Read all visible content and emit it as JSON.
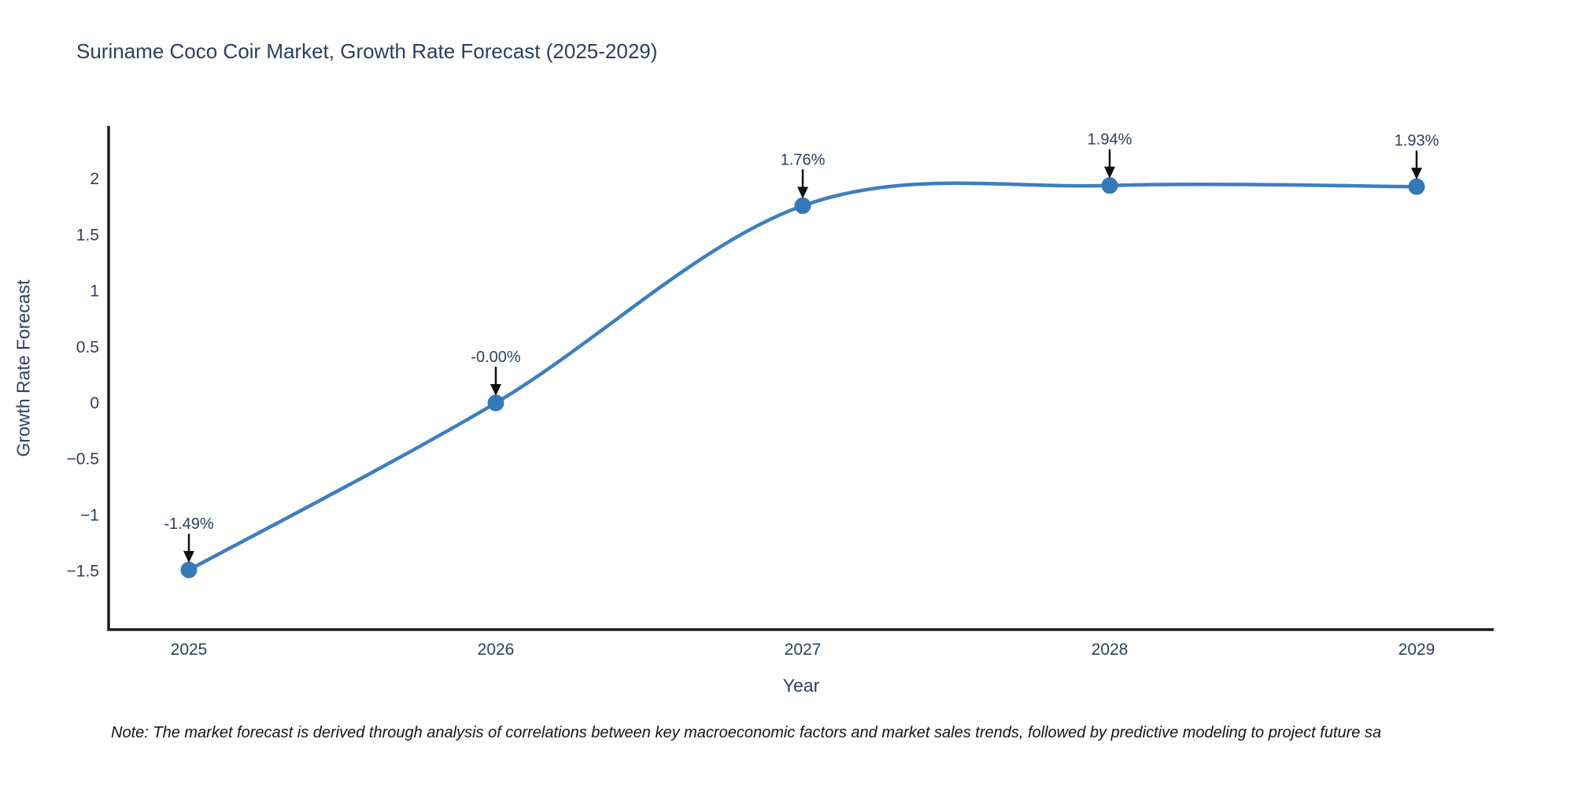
{
  "note": "Note: The market forecast is derived through analysis of correlations between key macroeconomic factors and market sales trends, followed by predictive modeling to project future sa",
  "chart_data": {
    "type": "line",
    "title": "Suriname Coco Coir Market, Growth Rate Forecast (2025-2029)",
    "xlabel": "Year",
    "ylabel": "Growth Rate Forecast",
    "x": [
      2025,
      2026,
      2027,
      2028,
      2029
    ],
    "series": [
      {
        "name": "Growth Rate Forecast",
        "values": [
          -1.49,
          -0.0,
          1.76,
          1.94,
          1.93
        ]
      }
    ],
    "point_labels": [
      "-1.49%",
      "-0.00%",
      "1.76%",
      "1.94%",
      "1.93%"
    ],
    "y_ticks": [
      {
        "value": 2,
        "label": "2"
      },
      {
        "value": 1.5,
        "label": "1.5"
      },
      {
        "value": 1,
        "label": "1"
      },
      {
        "value": 0.5,
        "label": "0.5"
      },
      {
        "value": 0,
        "label": "0"
      },
      {
        "value": -0.5,
        "label": "−0.5"
      },
      {
        "value": -1,
        "label": "−1"
      },
      {
        "value": -1.5,
        "label": "−1.5"
      }
    ],
    "ylim": [
      -2.05,
      2.5
    ],
    "line_shape": "spline",
    "grid": "off",
    "legend": "none",
    "annotation_arrows": true,
    "line_color": "#3d7ebf",
    "marker_color": "#3678b8",
    "text_color": "#2a3f5f",
    "axis_color": "#1c1c1c",
    "arrow_color": "#111111"
  }
}
